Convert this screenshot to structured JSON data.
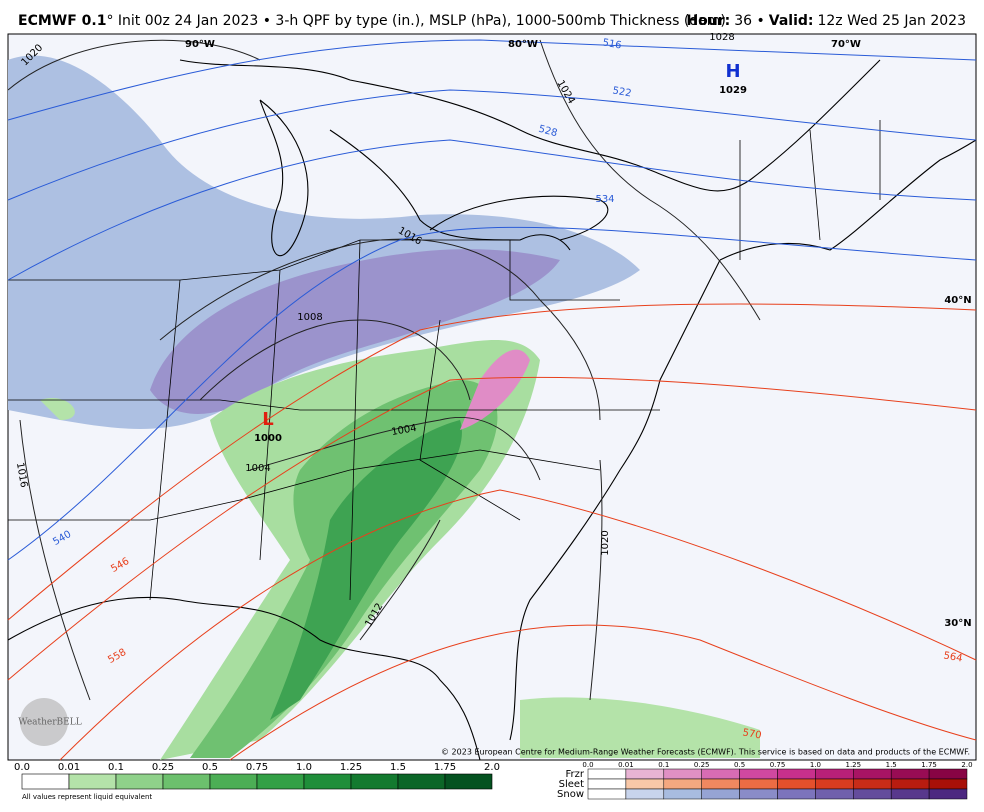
{
  "header": {
    "model": "ECMWF 0.1",
    "description": "° Init 00z 24 Jan 2023 • 3-h QPF by type (in.), MSLP (hPa), 1000-500mb Thickness (dam)",
    "hour_label": "Hour:",
    "hour": "36 •",
    "valid_label": "Valid:",
    "valid": "12z Wed 25 Jan 2023"
  },
  "map": {
    "longitudes": [
      "90°W",
      "80°W",
      "70°W"
    ],
    "latitudes": [
      "40°N",
      "30°N"
    ],
    "high": {
      "symbol": "H",
      "pressure": "1029"
    },
    "low": {
      "symbol": "L",
      "pressure": "1000"
    },
    "isobar_labels": [
      "1020",
      "1024",
      "1016",
      "1008",
      "1004",
      "1004",
      "1016",
      "1012",
      "1020",
      "1028"
    ],
    "thickness_labels": [
      "516",
      "522",
      "528",
      "534",
      "540",
      "546",
      "558",
      "564",
      "570"
    ],
    "copyright": "© 2023 European Centre for Medium-Range Weather Forecasts (ECMWF). This service is based on data and products of the ECMWF.",
    "logo": "WeatherBELL"
  },
  "legend": {
    "rain": {
      "ticks": [
        "0.0",
        "0.01",
        "0.1",
        "0.25",
        "0.5",
        "0.75",
        "1.0",
        "1.25",
        "1.5",
        "1.75",
        "2.0"
      ],
      "colors": [
        "#ffffff",
        "#b4e3a9",
        "#8fd18a",
        "#6cc06d",
        "#4cae55",
        "#33a046",
        "#1f8e3a",
        "#137a2f",
        "#0b6627",
        "#045220"
      ],
      "note": "All values represent liquid equivalent"
    },
    "ptype": {
      "ticks": [
        "0.0",
        "0.01",
        "0.1",
        "0.25",
        "0.5",
        "0.75",
        "1.0",
        "1.25",
        "1.5",
        "1.75",
        "2.0"
      ],
      "rows": [
        {
          "name": "Frzr",
          "colors": [
            "#ffffff",
            "#e8b4d4",
            "#e090c4",
            "#d86cb4",
            "#d048a0",
            "#c8308c",
            "#b82078",
            "#a81464",
            "#980c54",
            "#880444"
          ]
        },
        {
          "name": "Sleet",
          "colors": [
            "#ffffff",
            "#f8c8a8",
            "#f4a880",
            "#f08860",
            "#ec6c44",
            "#e4502c",
            "#d83c20",
            "#c82c18",
            "#b81c10",
            "#a81008"
          ]
        },
        {
          "name": "Snow",
          "colors": [
            "#ffffff",
            "#c8d4ec",
            "#a8bce0",
            "#96a4d4",
            "#8a8cc8",
            "#7c74bc",
            "#7060ac",
            "#644c9c",
            "#58388c",
            "#4c2880"
          ]
        }
      ]
    }
  }
}
